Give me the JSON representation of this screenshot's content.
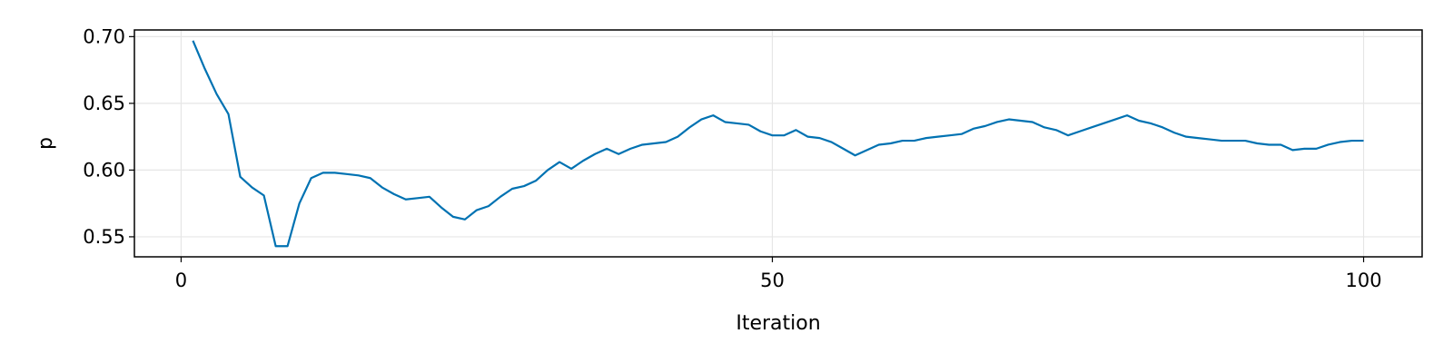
{
  "chart_data": {
    "type": "line",
    "title": "",
    "xlabel": "Iteration",
    "ylabel": "p",
    "xlim": [
      -3.95,
      104.95
    ],
    "ylim": [
      0.535,
      0.705
    ],
    "x_ticks": [
      0,
      50,
      100
    ],
    "x_tick_labels": [
      "0",
      "50",
      "100"
    ],
    "y_ticks": [
      0.55,
      0.6,
      0.65,
      0.7
    ],
    "y_tick_labels": [
      "0.55",
      "0.60",
      "0.65",
      "0.70"
    ],
    "grid": true,
    "colors": {
      "series": "#0072b2",
      "grid": "#e6e6e6",
      "frame": "#000000"
    },
    "series": [
      {
        "x": [
          1,
          2,
          3,
          4,
          5,
          6,
          7,
          8,
          9,
          10,
          11,
          12,
          13,
          14,
          15,
          16,
          17,
          18,
          19,
          20,
          21,
          22,
          23,
          24,
          25,
          26,
          27,
          28,
          29,
          30,
          31,
          32,
          33,
          34,
          35,
          36,
          37,
          38,
          39,
          40,
          41,
          42,
          43,
          44,
          45,
          46,
          47,
          48,
          49,
          50,
          51,
          52,
          53,
          54,
          55,
          56,
          57,
          58,
          59,
          60,
          61,
          62,
          63,
          64,
          65,
          66,
          67,
          68,
          69,
          70,
          71,
          72,
          73,
          74,
          75,
          76,
          77,
          78,
          79,
          80,
          81,
          82,
          83,
          84,
          85,
          86,
          87,
          88,
          89,
          90,
          91,
          92,
          93,
          94,
          95,
          96,
          97,
          98,
          99,
          100
        ],
        "values": [
          0.697,
          0.676,
          0.657,
          0.642,
          0.595,
          0.587,
          0.581,
          0.543,
          0.543,
          0.575,
          0.594,
          0.598,
          0.598,
          0.597,
          0.596,
          0.594,
          0.587,
          0.582,
          0.578,
          0.579,
          0.58,
          0.572,
          0.565,
          0.563,
          0.57,
          0.573,
          0.58,
          0.586,
          0.588,
          0.592,
          0.6,
          0.606,
          0.601,
          0.607,
          0.612,
          0.616,
          0.612,
          0.616,
          0.619,
          0.62,
          0.621,
          0.625,
          0.632,
          0.638,
          0.641,
          0.636,
          0.635,
          0.634,
          0.629,
          0.626,
          0.626,
          0.63,
          0.625,
          0.624,
          0.621,
          0.616,
          0.611,
          0.615,
          0.619,
          0.62,
          0.622,
          0.622,
          0.624,
          0.625,
          0.626,
          0.627,
          0.631,
          0.633,
          0.636,
          0.638,
          0.637,
          0.636,
          0.632,
          0.63,
          0.626,
          0.629,
          0.632,
          0.635,
          0.638,
          0.641,
          0.637,
          0.635,
          0.632,
          0.628,
          0.625,
          0.624,
          0.623,
          0.622,
          0.622,
          0.622,
          0.62,
          0.619,
          0.619,
          0.615,
          0.616,
          0.616,
          0.619,
          0.621,
          0.622,
          0.622
        ]
      }
    ]
  }
}
